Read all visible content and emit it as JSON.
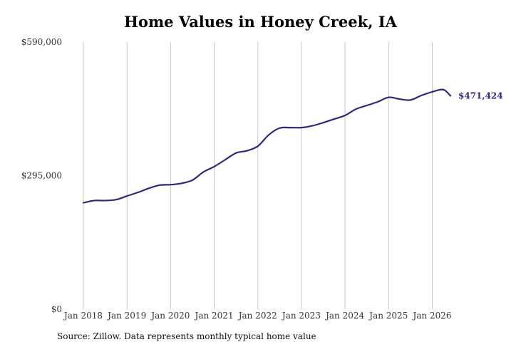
{
  "chart_data": {
    "type": "line",
    "title": "Home Values in Honey Creek, IA",
    "source": "Source: Zillow. Data represents monthly typical home value",
    "xlabel": "",
    "ylabel": "",
    "ylim": [
      0,
      590000
    ],
    "xlim": [
      "2018-01",
      "2026-07"
    ],
    "y_ticks": [
      {
        "value": 0,
        "label": "$0"
      },
      {
        "value": 295000,
        "label": "$295,000"
      },
      {
        "value": 590000,
        "label": "$590,000"
      }
    ],
    "x_ticks": [
      {
        "date": "2018-01",
        "label": "Jan 2018"
      },
      {
        "date": "2019-01",
        "label": "Jan 2019"
      },
      {
        "date": "2020-01",
        "label": "Jan 2020"
      },
      {
        "date": "2021-01",
        "label": "Jan 2021"
      },
      {
        "date": "2022-01",
        "label": "Jan 2022"
      },
      {
        "date": "2023-01",
        "label": "Jan 2023"
      },
      {
        "date": "2024-01",
        "label": "Jan 2024"
      },
      {
        "date": "2025-01",
        "label": "Jan 2025"
      },
      {
        "date": "2026-01",
        "label": "Jan 2026"
      }
    ],
    "grid": "vertical",
    "line_color": "#2e2a7a",
    "end_label": "$471,424",
    "series": [
      {
        "x": [
          "2018-01",
          "2018-04",
          "2018-07",
          "2018-10",
          "2019-01",
          "2019-04",
          "2019-07",
          "2019-10",
          "2020-01",
          "2020-04",
          "2020-07",
          "2020-10",
          "2021-01",
          "2021-04",
          "2021-07",
          "2021-10",
          "2022-01",
          "2022-04",
          "2022-07",
          "2022-10",
          "2023-01",
          "2023-04",
          "2023-07",
          "2023-10",
          "2024-01",
          "2024-04",
          "2024-07",
          "2024-10",
          "2025-01",
          "2025-04",
          "2025-07",
          "2025-10",
          "2026-01",
          "2026-04",
          "2026-06"
        ],
        "values": [
          235000,
          240000,
          240000,
          242000,
          250000,
          258000,
          267000,
          274000,
          275000,
          278000,
          285000,
          303000,
          315000,
          330000,
          345000,
          350000,
          360000,
          385000,
          400000,
          401000,
          401000,
          405000,
          412000,
          420000,
          428000,
          442000,
          450000,
          458000,
          468000,
          464000,
          462000,
          472000,
          480000,
          485000,
          471424
        ]
      }
    ]
  }
}
